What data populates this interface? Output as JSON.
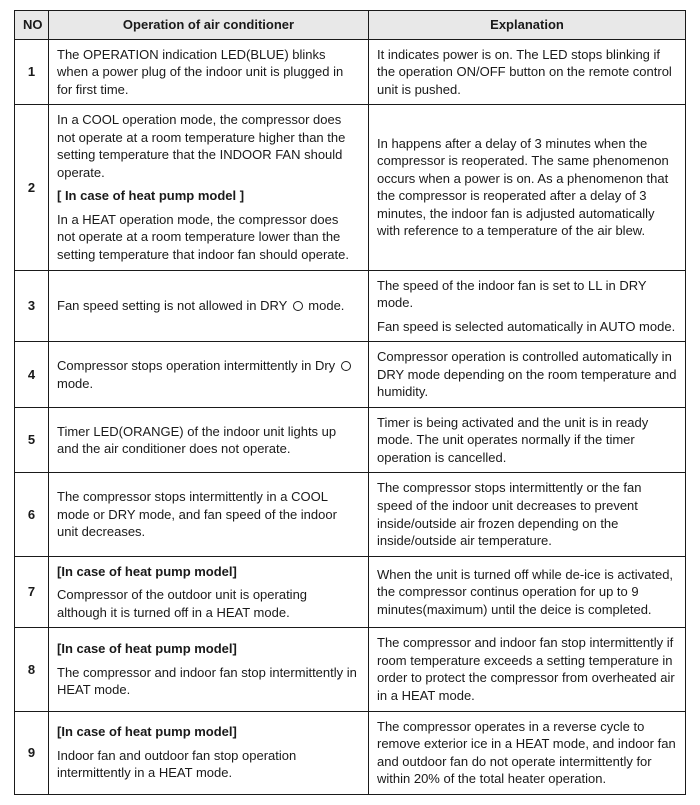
{
  "table": {
    "headers": {
      "no": "NO",
      "operation": "Operation of air conditioner",
      "explanation": "Explanation"
    },
    "moon_icon_name": "dry-mode-icon",
    "rows": [
      {
        "no": "1",
        "op": [
          {
            "t": "p",
            "v": "The OPERATION indication LED(BLUE) blinks when a power plug of the indoor unit is plugged in for first time."
          }
        ],
        "ex": [
          {
            "t": "p",
            "v": "It indicates power is on. The LED stops blinking if the operation ON/OFF button on the remote control unit is pushed."
          }
        ]
      },
      {
        "no": "2",
        "op": [
          {
            "t": "p",
            "v": "In a COOL operation mode, the compressor does not operate at a room temperature higher than the setting temperature that the INDOOR FAN should operate."
          },
          {
            "t": "b",
            "v": "[ In case of heat pump model ]"
          },
          {
            "t": "p",
            "v": "In a HEAT operation mode, the compressor does not operate at a room temperature lower than the setting temperature that indoor fan should operate."
          }
        ],
        "ex": [
          {
            "t": "p",
            "v": "In happens after a delay of 3 minutes when the compressor is reoperated. The same phenomenon occurs when a power is on. As a phenomenon that the compressor is reoperated after a delay of 3 minutes, the indoor fan is adjusted automatically with reference to a temperature of the air blew."
          }
        ]
      },
      {
        "no": "3",
        "op": [
          {
            "t": "p_icon",
            "before": "Fan speed setting is not allowed in DRY",
            "after": " mode."
          }
        ],
        "ex": [
          {
            "t": "p",
            "v": "The speed of the indoor fan is set to LL in DRY mode."
          },
          {
            "t": "p",
            "v": "Fan speed is selected automatically in AUTO mode."
          }
        ]
      },
      {
        "no": "4",
        "op": [
          {
            "t": "p_icon",
            "before": "Compressor stops operation intermittently in Dry",
            "after": " mode."
          }
        ],
        "ex": [
          {
            "t": "p",
            "v": "Compressor operation is controlled automatically in DRY mode depending on the room temperature and humidity."
          }
        ]
      },
      {
        "no": "5",
        "op": [
          {
            "t": "p",
            "v": "Timer LED(ORANGE) of the indoor unit lights up and the air conditioner does not operate."
          }
        ],
        "ex": [
          {
            "t": "p",
            "v": "Timer is being activated and the unit is in ready mode. The unit operates normally if the timer operation is cancelled."
          }
        ]
      },
      {
        "no": "6",
        "op": [
          {
            "t": "p",
            "v": "The compressor stops intermittently in a COOL mode or DRY mode, and fan speed of the indoor unit decreases."
          }
        ],
        "ex": [
          {
            "t": "p",
            "v": "The compressor stops intermittently or the fan speed of the indoor unit decreases to prevent inside/outside air frozen depending on the inside/outside air temperature."
          }
        ]
      },
      {
        "no": "7",
        "op": [
          {
            "t": "b",
            "v": "[In case of heat pump model]"
          },
          {
            "t": "p",
            "v": "Compressor of the outdoor unit is operating although it is turned off in a HEAT mode."
          }
        ],
        "ex": [
          {
            "t": "p",
            "v": "When the unit is turned off while de-ice is activated, the compressor continus operation for up to 9 minutes(maximum) until the deice is completed."
          }
        ]
      },
      {
        "no": "8",
        "op": [
          {
            "t": "b",
            "v": "[In case of heat pump model]"
          },
          {
            "t": "p",
            "v": "The compressor and indoor fan stop intermittently in HEAT mode."
          }
        ],
        "ex": [
          {
            "t": "p",
            "v": "The compressor and indoor fan stop intermittently if room temperature exceeds a setting temperature in order to protect the compressor from overheated air in a HEAT mode."
          }
        ]
      },
      {
        "no": "9",
        "op": [
          {
            "t": "b",
            "v": "[In case of heat pump model]"
          },
          {
            "t": "p",
            "v": "Indoor fan and outdoor fan stop operation intermittently in a HEAT mode."
          }
        ],
        "ex": [
          {
            "t": "p",
            "v": "The compressor operates in a reverse cycle to remove exterior ice in a HEAT mode, and indoor fan and outdoor fan do not operate intermittently for within 20% of the total heater operation."
          }
        ]
      }
    ]
  }
}
